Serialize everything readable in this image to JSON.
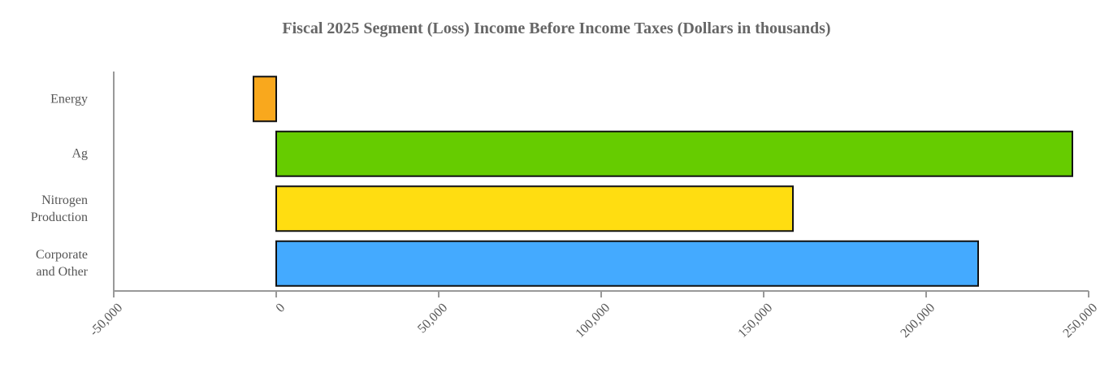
{
  "chart_data": {
    "type": "bar",
    "orientation": "horizontal",
    "title": "Fiscal 2025 Segment (Loss) Income Before Income Taxes (Dollars in thousands)",
    "categories": [
      "Energy",
      "Ag",
      "Nitrogen Production",
      "Corporate and Other"
    ],
    "values": [
      -7000,
      245000,
      159000,
      216000
    ],
    "colors": [
      "#f9a81d",
      "#66cc00",
      "#ffdd11",
      "#44aaff"
    ],
    "xlim": [
      -50000,
      250000
    ],
    "xticks": [
      {
        "value": -50000,
        "label": "-50,000"
      },
      0,
      {
        "value": 50000,
        "label": "50,000"
      },
      {
        "value": 100000,
        "label": "100,000"
      },
      {
        "value": 150000,
        "label": "150,000"
      },
      {
        "value": 200000,
        "label": "200,000"
      },
      {
        "value": 250000,
        "label": "250,000"
      }
    ],
    "grid": false
  }
}
